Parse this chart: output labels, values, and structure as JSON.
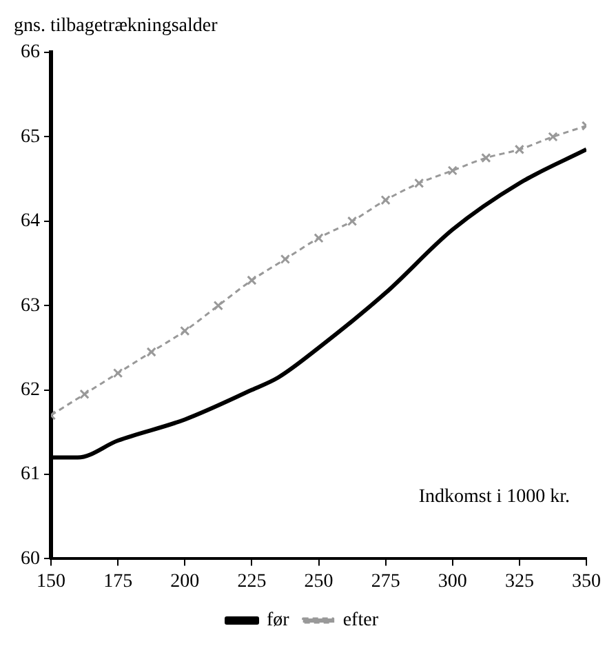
{
  "chart_data": {
    "type": "line",
    "ylabel": "gns. tilbagetrækningsalder",
    "xlabel": "Indkomst i 1000 kr.",
    "xlim": [
      150,
      350
    ],
    "xticks": [
      150,
      175,
      200,
      225,
      250,
      275,
      300,
      325,
      350
    ],
    "ylim": [
      60,
      66
    ],
    "yticks": [
      60,
      61,
      62,
      63,
      64,
      65,
      66
    ],
    "grid": false,
    "legend": "bottom",
    "series": [
      {
        "name": "før",
        "color": "#000000",
        "line_style": "solid",
        "marker": "none",
        "x": [
          150,
          160,
          175,
          200,
          225,
          235,
          250,
          275,
          300,
          325,
          350
        ],
        "values": [
          61.2,
          61.2,
          61.4,
          61.65,
          62.0,
          62.15,
          62.5,
          63.15,
          63.9,
          64.45,
          64.85
        ]
      },
      {
        "name": "efter",
        "color": "#999999",
        "line_style": "dashed",
        "marker": "cross",
        "x": [
          150,
          162.5,
          175,
          187.5,
          200,
          212.5,
          225,
          237.5,
          250,
          262.5,
          275,
          287.5,
          300,
          312.5,
          325,
          337.5,
          350
        ],
        "values": [
          61.7,
          61.95,
          62.2,
          62.45,
          62.7,
          63.0,
          63.3,
          63.55,
          63.8,
          64.0,
          64.25,
          64.45,
          64.6,
          64.75,
          64.85,
          65.0,
          65.13
        ]
      }
    ]
  }
}
